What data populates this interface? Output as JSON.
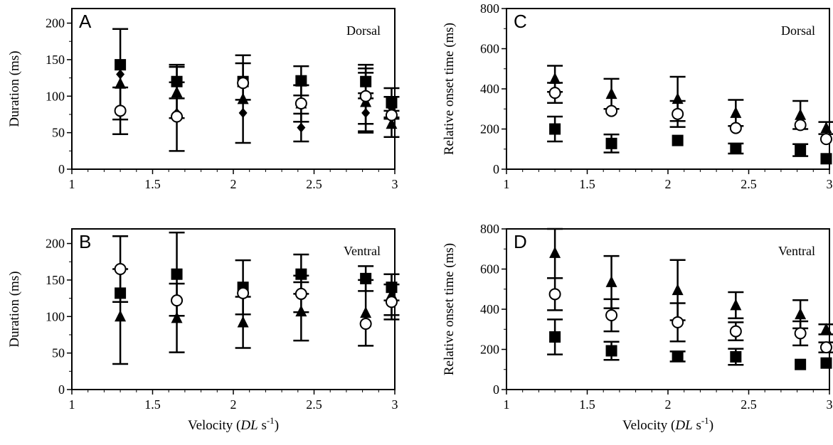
{
  "colors": {
    "ink": "#000000",
    "open_fill": "#ffffff"
  },
  "chart_data": [
    {
      "type": "scatter",
      "panel": "A",
      "annotation": "Dorsal",
      "xlabel": "",
      "ylabel": "Duration (ms)",
      "xlim": [
        1,
        3
      ],
      "ylim": [
        0,
        220
      ],
      "xticks": [
        1,
        1.5,
        2,
        2.5,
        3
      ],
      "xtick_labels": [
        "1",
        "1.5",
        "2",
        "2.5",
        "3"
      ],
      "yticks": [
        0,
        50,
        100,
        150,
        200
      ],
      "ytick_labels": [
        "0",
        "50",
        "100",
        "150",
        "200"
      ],
      "series": [
        {
          "marker": "square",
          "x": [
            1.3,
            1.65,
            2.06,
            2.42,
            2.82,
            2.98
          ],
          "y": [
            143,
            120,
            120,
            121,
            120,
            91
          ],
          "err": [
            0,
            23,
            25,
            20,
            23,
            20
          ]
        },
        {
          "marker": "triangle",
          "x": [
            1.3,
            1.65,
            2.06,
            2.42,
            2.82,
            2.98
          ],
          "y": [
            117,
            105,
            96,
            90,
            92,
            62
          ],
          "err": [
            0,
            35,
            60,
            25,
            40,
            18
          ]
        },
        {
          "marker": "diamond",
          "x": [
            1.3,
            1.65,
            2.06,
            2.42,
            2.82,
            2.98
          ],
          "y": [
            130,
            77,
            77,
            57,
            77,
            84
          ],
          "err": [
            62,
            0,
            0,
            19,
            27,
            15
          ]
        },
        {
          "marker": "circle",
          "x": [
            1.3,
            1.65,
            2.06,
            2.42,
            2.82,
            2.98
          ],
          "y": [
            80,
            72,
            118,
            90,
            100,
            74
          ],
          "err": [
            32,
            47,
            0,
            25,
            38,
            0
          ]
        }
      ]
    },
    {
      "type": "scatter",
      "panel": "B",
      "annotation": "Ventral",
      "xlabel": "Velocity (DL s⁻¹)",
      "xlabel_parts": [
        "Velocity (",
        "DL",
        " s",
        "-1",
        ")"
      ],
      "ylabel": "Duration (ms)",
      "xlim": [
        1,
        3
      ],
      "ylim": [
        0,
        220
      ],
      "xticks": [
        1,
        1.5,
        2,
        2.5,
        3
      ],
      "xtick_labels": [
        "1",
        "1.5",
        "2",
        "2.5",
        "3"
      ],
      "yticks": [
        0,
        50,
        100,
        150,
        200
      ],
      "ytick_labels": [
        "0",
        "50",
        "100",
        "150",
        "200"
      ],
      "series": [
        {
          "marker": "square",
          "x": [
            1.3,
            1.65,
            2.06,
            2.42,
            2.82,
            2.98
          ],
          "y": [
            132,
            158,
            140,
            158,
            152,
            140
          ],
          "err": [
            0,
            57,
            37,
            27,
            17,
            18
          ]
        },
        {
          "marker": "triangle",
          "x": [
            1.3,
            1.65,
            2.06,
            2.42,
            2.82,
            2.98
          ],
          "y": [
            100,
            98,
            92,
            107,
            105,
            130
          ],
          "err": [
            65,
            47,
            35,
            40,
            45,
            28
          ]
        },
        {
          "marker": "circle",
          "x": [
            1.3,
            1.65,
            2.06,
            2.42,
            2.82,
            2.98
          ],
          "y": [
            165,
            122,
            132,
            131,
            90,
            120
          ],
          "err": [
            45,
            0,
            0,
            25,
            0,
            24
          ]
        }
      ]
    },
    {
      "type": "scatter",
      "panel": "C",
      "annotation": "Dorsal",
      "xlabel": "",
      "ylabel": "Relative onset time (ms)",
      "xlim": [
        1,
        3
      ],
      "ylim": [
        0,
        800
      ],
      "xticks": [
        1,
        1.5,
        2,
        2.5,
        3
      ],
      "xtick_labels": [
        "1",
        "1.5",
        "2",
        "2.5",
        "3"
      ],
      "yticks": [
        0,
        200,
        400,
        600,
        800
      ],
      "ytick_labels": [
        "0",
        "200",
        "400",
        "600",
        "800"
      ],
      "series": [
        {
          "marker": "triangle",
          "x": [
            1.3,
            1.65,
            2.06,
            2.42,
            2.82,
            2.98
          ],
          "y": [
            450,
            375,
            350,
            280,
            270,
            205
          ],
          "err": [
            65,
            75,
            110,
            65,
            70,
            30
          ]
        },
        {
          "marker": "circle",
          "x": [
            1.3,
            1.65,
            2.06,
            2.42,
            2.82,
            2.98
          ],
          "y": [
            380,
            290,
            275,
            205,
            220,
            150
          ],
          "err": [
            50,
            0,
            65,
            0,
            0,
            0
          ]
        },
        {
          "marker": "square",
          "x": [
            1.3,
            1.65,
            2.06,
            2.42,
            2.82,
            2.98
          ],
          "y": [
            200,
            128,
            143,
            103,
            95,
            52
          ],
          "err": [
            62,
            45,
            0,
            25,
            30,
            0
          ]
        }
      ]
    },
    {
      "type": "scatter",
      "panel": "D",
      "annotation": "Ventral",
      "xlabel": "Velocity (DL s⁻¹)",
      "xlabel_parts": [
        "Velocity (",
        "DL",
        " s",
        "-1",
        ")"
      ],
      "ylabel": "Relative onset time (ms)",
      "xlim": [
        1,
        3
      ],
      "ylim": [
        0,
        800
      ],
      "xticks": [
        1,
        1.5,
        2,
        2.5,
        3
      ],
      "xtick_labels": [
        "1",
        "1.5",
        "2",
        "2.5",
        "3"
      ],
      "yticks": [
        0,
        200,
        400,
        600,
        800
      ],
      "ytick_labels": [
        "0",
        "200",
        "400",
        "600",
        "800"
      ],
      "series": [
        {
          "marker": "triangle",
          "x": [
            1.3,
            1.65,
            2.06,
            2.42,
            2.82,
            2.98
          ],
          "y": [
            680,
            535,
            495,
            420,
            375,
            300
          ],
          "err": [
            125,
            130,
            150,
            65,
            70,
            25
          ]
        },
        {
          "marker": "circle",
          "x": [
            1.3,
            1.65,
            2.06,
            2.42,
            2.82,
            2.98
          ],
          "y": [
            475,
            370,
            335,
            290,
            280,
            210
          ],
          "err": [
            80,
            80,
            95,
            45,
            60,
            25
          ]
        },
        {
          "marker": "square",
          "x": [
            1.3,
            1.65,
            2.06,
            2.42,
            2.82,
            2.98
          ],
          "y": [
            262,
            193,
            165,
            163,
            125,
            132
          ],
          "err": [
            87,
            45,
            25,
            40,
            0,
            0
          ]
        }
      ]
    }
  ]
}
